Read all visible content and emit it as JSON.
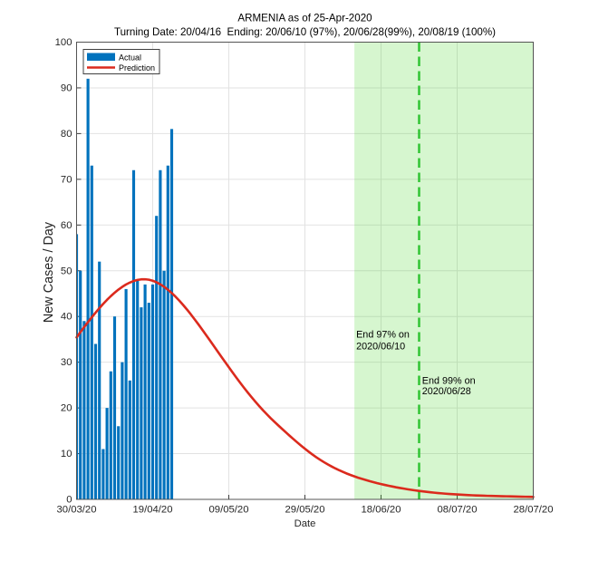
{
  "title": "ARMENIA as of 25-Apr-2020",
  "subtitle": "Turning Date: 20/04/16  Ending: 20/06/10 (97%), 20/06/28(99%), 20/08/19 (100%)",
  "legend": {
    "actual_label": "Actual",
    "prediction_label": "Prediction"
  },
  "axes": {
    "xlabel": "Date",
    "ylabel": "New Cases / Day",
    "x_tick_labels": [
      "30/03/20",
      "19/04/20",
      "09/05/20",
      "29/05/20",
      "18/06/20",
      "08/07/20",
      "28/07/20"
    ],
    "x_tick_days": [
      0,
      20,
      40,
      60,
      80,
      100,
      120
    ],
    "y_tick_labels": [
      "0",
      "10",
      "20",
      "30",
      "40",
      "50",
      "60",
      "70",
      "80",
      "90",
      "100"
    ],
    "y_ticks": [
      0,
      10,
      20,
      30,
      40,
      50,
      60,
      70,
      80,
      90,
      100
    ]
  },
  "annotations": [
    {
      "line1": "End 97% on",
      "line2": "2020/06/10",
      "day": 73.48,
      "value1": 35.4,
      "value2": 32.8
    },
    {
      "line1": "End 99% on",
      "line2": "2020/06/28",
      "day": 90.78,
      "value1": 25.25,
      "value2": 23.0
    }
  ],
  "colors": {
    "actual_bar": "#0072BD",
    "actual_bar_edge": "#00528A",
    "prediction_line": "#DB2A1D",
    "ending_region": "#4CD62E",
    "end_line": "#30C433",
    "grid": "#E2E2E2",
    "axis": "#3D3D3D",
    "frame": "#545454",
    "background": "#FFFFFF"
  },
  "chart_data": {
    "type": "bar",
    "title": "ARMENIA as of 25-Apr-2020",
    "subtitle": "Turning Date: 20/04/16  Ending: 20/06/10 (97%), 20/06/28(99%), 20/08/19 (100%)",
    "xlabel": "Date",
    "ylabel": "New Cases / Day",
    "ylim": [
      0,
      100
    ],
    "xlim_days": [
      0,
      120
    ],
    "x_axis_start_date": "30/03/20",
    "grid": true,
    "legend_position": "top-left-inside",
    "categories": [
      "30/03/20",
      "31/03/20",
      "01/04/20",
      "02/04/20",
      "03/04/20",
      "04/04/20",
      "05/04/20",
      "06/04/20",
      "07/04/20",
      "08/04/20",
      "09/04/20",
      "10/04/20",
      "11/04/20",
      "12/04/20",
      "13/04/20",
      "14/04/20",
      "15/04/20",
      "16/04/20",
      "17/04/20",
      "18/04/20",
      "19/04/20",
      "20/04/20",
      "21/04/20",
      "22/04/20",
      "23/04/20",
      "24/04/20"
    ],
    "series": [
      {
        "name": "Actual",
        "type": "bar",
        "days": [
          0,
          1,
          2,
          3,
          4,
          5,
          6,
          7,
          8,
          9,
          10,
          11,
          12,
          13,
          14,
          15,
          16,
          17,
          18,
          19,
          20,
          21,
          22,
          23,
          24,
          25
        ],
        "values": [
          58,
          50,
          39,
          92,
          73,
          34,
          52,
          11,
          20,
          28,
          40,
          16,
          30,
          46,
          26,
          72,
          48,
          42,
          47,
          43,
          47,
          62,
          72,
          50,
          73,
          81
        ]
      },
      {
        "name": "Prediction",
        "type": "line",
        "points": [
          [
            0,
            35.42
          ],
          [
            1,
            36.56
          ],
          [
            2,
            37.68
          ],
          [
            3,
            38.77
          ],
          [
            4,
            39.83
          ],
          [
            5,
            40.85
          ],
          [
            6,
            41.83
          ],
          [
            7,
            42.76
          ],
          [
            8,
            43.64
          ],
          [
            9,
            44.45
          ],
          [
            10,
            45.2
          ],
          [
            11,
            45.88
          ],
          [
            12,
            46.48
          ],
          [
            13,
            47.0
          ],
          [
            14,
            47.42
          ],
          [
            15,
            47.76
          ],
          [
            16,
            47.99
          ],
          [
            17,
            48.12
          ],
          [
            18,
            48.14
          ],
          [
            19,
            48.04
          ],
          [
            20,
            47.82
          ],
          [
            21,
            47.48
          ],
          [
            22,
            47.04
          ],
          [
            23,
            46.49
          ],
          [
            24,
            45.85
          ],
          [
            25,
            45.13
          ],
          [
            26,
            44.33
          ],
          [
            27,
            43.46
          ],
          [
            28,
            42.52
          ],
          [
            29,
            41.53
          ],
          [
            30,
            40.49
          ],
          [
            31,
            39.4
          ],
          [
            32,
            38.29
          ],
          [
            33,
            37.14
          ],
          [
            34,
            35.98
          ],
          [
            35,
            34.81
          ],
          [
            36,
            33.62
          ],
          [
            37,
            32.44
          ],
          [
            38,
            31.25
          ],
          [
            39,
            30.08
          ],
          [
            40,
            28.91
          ],
          [
            41,
            27.75
          ],
          [
            42,
            26.61
          ],
          [
            43,
            25.5
          ],
          [
            44,
            24.41
          ],
          [
            45,
            23.35
          ],
          [
            46,
            22.33
          ],
          [
            47,
            21.34
          ],
          [
            48,
            20.39
          ],
          [
            49,
            19.47
          ],
          [
            50,
            18.6
          ],
          [
            51,
            17.76
          ],
          [
            52,
            16.96
          ],
          [
            53,
            16.18
          ],
          [
            54,
            15.41
          ],
          [
            55,
            14.65
          ],
          [
            56,
            13.9
          ],
          [
            57,
            13.17
          ],
          [
            58,
            12.45
          ],
          [
            59,
            11.75
          ],
          [
            60,
            11.07
          ],
          [
            61,
            10.42
          ],
          [
            62,
            9.8
          ],
          [
            63,
            9.21
          ],
          [
            64,
            8.66
          ],
          [
            65,
            8.14
          ],
          [
            66,
            7.65
          ],
          [
            67,
            7.2
          ],
          [
            68,
            6.77
          ],
          [
            69,
            6.37
          ],
          [
            70,
            6.0
          ],
          [
            71,
            5.65
          ],
          [
            72,
            5.33
          ],
          [
            73,
            5.03
          ],
          [
            74,
            4.74
          ],
          [
            75,
            4.48
          ],
          [
            76,
            4.23
          ],
          [
            77,
            3.99
          ],
          [
            78,
            3.77
          ],
          [
            79,
            3.55
          ],
          [
            80,
            3.35
          ],
          [
            81,
            3.16
          ],
          [
            82,
            2.98
          ],
          [
            83,
            2.81
          ],
          [
            84,
            2.64
          ],
          [
            85,
            2.49
          ],
          [
            86,
            2.35
          ],
          [
            87,
            2.21
          ],
          [
            88,
            2.08
          ],
          [
            89,
            1.96
          ],
          [
            90,
            1.85
          ],
          [
            91,
            1.74
          ],
          [
            92,
            1.64
          ],
          [
            93,
            1.55
          ],
          [
            94,
            1.46
          ],
          [
            95,
            1.38
          ],
          [
            96,
            1.31
          ],
          [
            97,
            1.24
          ],
          [
            98,
            1.18
          ],
          [
            99,
            1.12
          ],
          [
            100,
            1.07
          ],
          [
            101,
            1.02
          ],
          [
            102,
            0.97
          ],
          [
            103,
            0.93
          ],
          [
            104,
            0.89
          ],
          [
            105,
            0.86
          ],
          [
            106,
            0.83
          ],
          [
            107,
            0.8
          ],
          [
            108,
            0.77
          ],
          [
            109,
            0.75
          ],
          [
            110,
            0.73
          ],
          [
            111,
            0.7
          ],
          [
            112,
            0.68
          ],
          [
            113,
            0.67
          ],
          [
            114,
            0.65
          ],
          [
            115,
            0.63
          ],
          [
            116,
            0.61
          ],
          [
            117,
            0.59
          ],
          [
            118,
            0.57
          ],
          [
            119,
            0.56
          ],
          [
            120,
            0.54
          ]
        ]
      }
    ],
    "ending_region_start_day": 73,
    "ending_region_end_day": 120,
    "end99_line_day": 90
  }
}
